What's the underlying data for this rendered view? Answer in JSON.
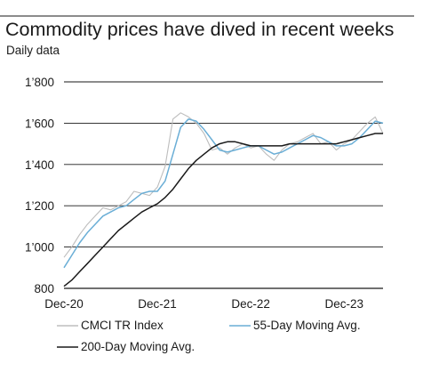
{
  "chart_data": {
    "type": "line",
    "title": "Commodity prices have dived in recent weeks",
    "subtitle": "Daily data",
    "xlabel": "",
    "ylabel": "",
    "x_tick_labels": [
      "Dec-20",
      "Dec-21",
      "Dec-22",
      "Dec-23"
    ],
    "y_tick_labels": [
      "800",
      "1’000",
      "1’200",
      "1’400",
      "1’600",
      "1’800"
    ],
    "ylim": [
      800,
      1800
    ],
    "xlim": [
      "2020-12",
      "2024-05"
    ],
    "grid": "horizontal",
    "legend_position": "bottom",
    "x": [
      "2020-12",
      "2021-01",
      "2021-02",
      "2021-03",
      "2021-04",
      "2021-05",
      "2021-06",
      "2021-07",
      "2021-08",
      "2021-09",
      "2021-10",
      "2021-11",
      "2021-12",
      "2022-01",
      "2022-02",
      "2022-03",
      "2022-04",
      "2022-05",
      "2022-06",
      "2022-07",
      "2022-08",
      "2022-09",
      "2022-10",
      "2022-11",
      "2022-12",
      "2023-01",
      "2023-02",
      "2023-03",
      "2023-04",
      "2023-05",
      "2023-06",
      "2023-07",
      "2023-08",
      "2023-09",
      "2023-10",
      "2023-11",
      "2023-12",
      "2024-01",
      "2024-02",
      "2024-03",
      "2024-04",
      "2024-05"
    ],
    "series": [
      {
        "name": "CMCI TR Index",
        "color": "#bdbdbd",
        "values": [
          950,
          1000,
          1060,
          1110,
          1150,
          1190,
          1180,
          1200,
          1220,
          1270,
          1260,
          1250,
          1290,
          1390,
          1620,
          1650,
          1630,
          1600,
          1550,
          1470,
          1480,
          1450,
          1480,
          1500,
          1480,
          1490,
          1450,
          1420,
          1470,
          1500,
          1510,
          1530,
          1550,
          1500,
          1510,
          1470,
          1500,
          1520,
          1560,
          1600,
          1630,
          1550
        ]
      },
      {
        "name": "55-Day Moving Avg.",
        "color": "#6aaed6",
        "values": [
          900,
          960,
          1020,
          1070,
          1110,
          1150,
          1170,
          1190,
          1200,
          1230,
          1260,
          1270,
          1270,
          1320,
          1450,
          1580,
          1620,
          1610,
          1570,
          1520,
          1470,
          1460,
          1470,
          1480,
          1490,
          1490,
          1470,
          1450,
          1460,
          1480,
          1500,
          1520,
          1540,
          1530,
          1510,
          1490,
          1490,
          1500,
          1530,
          1570,
          1610,
          1600
        ]
      },
      {
        "name": "200-Day Moving Avg.",
        "color": "#1a1a1a",
        "values": [
          810,
          840,
          880,
          920,
          960,
          1000,
          1040,
          1080,
          1110,
          1140,
          1170,
          1190,
          1210,
          1240,
          1280,
          1330,
          1380,
          1420,
          1450,
          1480,
          1500,
          1510,
          1510,
          1500,
          1490,
          1490,
          1490,
          1490,
          1490,
          1500,
          1500,
          1500,
          1500,
          1500,
          1500,
          1500,
          1510,
          1520,
          1530,
          1540,
          1550,
          1550
        ]
      }
    ]
  }
}
